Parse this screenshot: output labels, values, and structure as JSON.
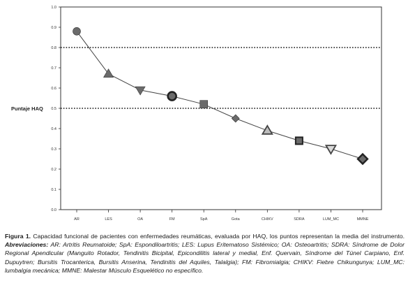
{
  "chart_data": {
    "type": "line",
    "ylabel": "Puntaje HAQ",
    "ylim": [
      0,
      1.0
    ],
    "yticks": [
      "0.0",
      "0.1",
      "0.2",
      "0.3",
      "0.4",
      "0.5",
      "0.6",
      "0.7",
      "0.8",
      "0.9",
      "1.0"
    ],
    "categories": [
      "AR",
      "LES",
      "OA",
      "FM",
      "SpA",
      "Gota",
      "CHIKV",
      "SDRA",
      "LUM_MC",
      "MMNE"
    ],
    "values": [
      0.88,
      0.67,
      0.59,
      0.56,
      0.52,
      0.45,
      0.39,
      0.34,
      0.3,
      0.25
    ],
    "markers": [
      "circle",
      "triangle-up",
      "triangle-down",
      "ring",
      "square",
      "diamond",
      "triangle-up-open",
      "square-open",
      "triangle-down-open",
      "diamond-open"
    ],
    "reference_lines": [
      0.8,
      0.5
    ],
    "grid": false,
    "colors": {
      "marker": "#6b6b6b",
      "line": "#444444",
      "reference": "#111111"
    }
  },
  "caption": {
    "prefix": "Figura 1.",
    "text": " Capacidad funcional de pacientes con enfermedades reumáticas, evaluada por HAQ, los puntos representan la media del instrumento. ",
    "abbrev_label": "Abreviaciones:",
    "abbrev_text": " AR: Artritis Reumatoide; SpA: Espondiloartritis; LES: Lupus Eritematoso Sistémico; OA: Osteoartritis; SDRA: Síndrome de Dolor Regional Apendicular (Manguito Rotador, Tendinitis Bicipital, Epicondilitis lateral y medial, Enf. Quervain, Síndrome del Túnel Carpiano, Enf. Dupuytren; Bursitis Trocanterica, Bursitis Anserina, Tendinitis del Aquiles, Talalgia); FM: Fibromialgia; CHIKV: Fiebre Chikungunya; LUM_MC: lumbalgia mecánica; MMNE: Malestar Músculo Esquelético no específico."
  }
}
